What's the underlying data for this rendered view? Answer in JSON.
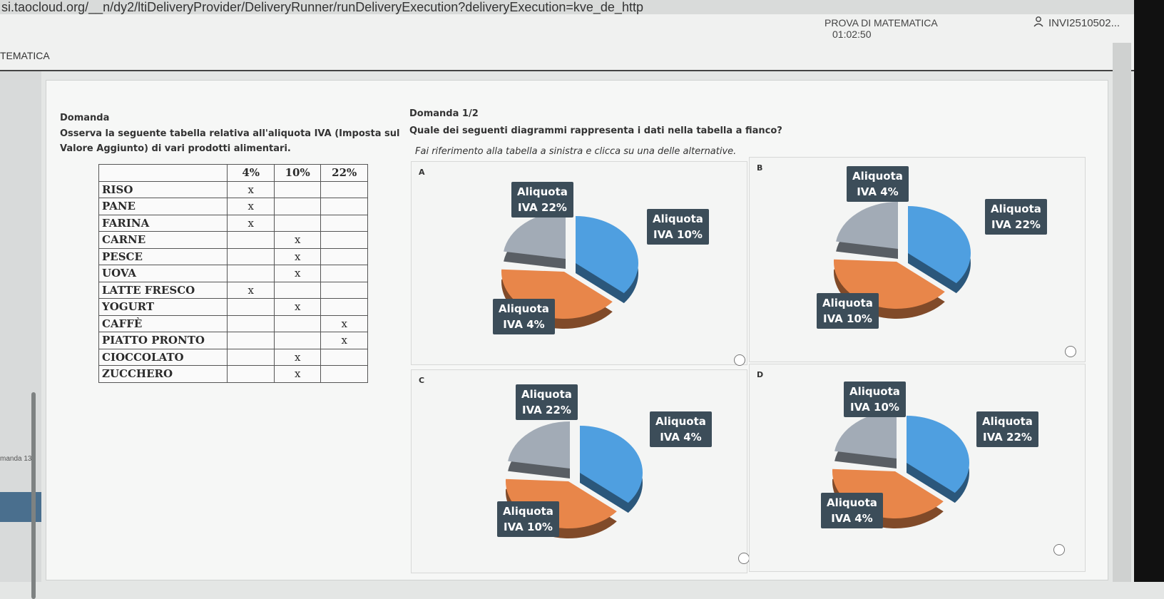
{
  "browser": {
    "url": "si.taocloud.org/__n/dy2/ltiDeliveryProvider/DeliveryRunner/runDeliveryExecution?deliveryExecution=kve_de_http"
  },
  "header": {
    "test_title": "PROVA DI MATEMATICA",
    "timer": "01:02:50",
    "user_id": "INVI2510502...",
    "section": "TEMATICA"
  },
  "sidebar": {
    "question_label": "manda 13"
  },
  "question": {
    "left_title": "Domanda",
    "stem_line1": "Osserva la seguente tabella relativa all'aliquota IVA (Imposta sul",
    "stem_line2": "Valore Aggiunto) di vari prodotti alimentari.",
    "right_title": "Domanda 1/2",
    "prompt": "Quale dei seguenti diagrammi rappresenta i dati nella tabella a fianco?",
    "instruction": "Fai riferimento alla tabella a sinistra e clicca su una delle alternative."
  },
  "table": {
    "headers": [
      "",
      "4%",
      "10%",
      "22%"
    ],
    "rows": [
      {
        "name": "RISO",
        "col": 0
      },
      {
        "name": "PANE",
        "col": 0
      },
      {
        "name": "FARINA",
        "col": 0
      },
      {
        "name": "CARNE",
        "col": 1
      },
      {
        "name": "PESCE",
        "col": 1
      },
      {
        "name": "UOVA",
        "col": 1
      },
      {
        "name": "LATTE FRESCO",
        "col": 0
      },
      {
        "name": "YOGURT",
        "col": 1
      },
      {
        "name": "CAFFÈ",
        "col": 2
      },
      {
        "name": "PIATTO PRONTO",
        "col": 2
      },
      {
        "name": "CIOCCOLATO",
        "col": 1
      },
      {
        "name": "ZUCCHERO",
        "col": 1
      }
    ],
    "mark": "x"
  },
  "choices": [
    {
      "letter": "A",
      "labels": [
        {
          "l1": "Aliquota",
          "l2": "IVA 22%"
        },
        {
          "l1": "Aliquota",
          "l2": "IVA 10%"
        },
        {
          "l1": "Aliquota",
          "l2": "IVA 4%"
        }
      ]
    },
    {
      "letter": "B",
      "labels": [
        {
          "l1": "Aliquota",
          "l2": "IVA 4%"
        },
        {
          "l1": "Aliquota",
          "l2": "IVA 22%"
        },
        {
          "l1": "Aliquota",
          "l2": "IVA 10%"
        }
      ]
    },
    {
      "letter": "C",
      "labels": [
        {
          "l1": "Aliquota",
          "l2": "IVA 22%"
        },
        {
          "l1": "Aliquota",
          "l2": "IVA 4%"
        },
        {
          "l1": "Aliquota",
          "l2": "IVA 10%"
        }
      ]
    },
    {
      "letter": "D",
      "labels": [
        {
          "l1": "Aliquota",
          "l2": "IVA 10%"
        },
        {
          "l1": "Aliquota",
          "l2": "IVA 22%"
        },
        {
          "l1": "Aliquota",
          "l2": "IVA 4%"
        }
      ]
    }
  ],
  "colors": {
    "orange": "#e8864a",
    "blue": "#4f9fe0",
    "grey": "#a2abb6",
    "label_bg": "#3c4d59"
  }
}
